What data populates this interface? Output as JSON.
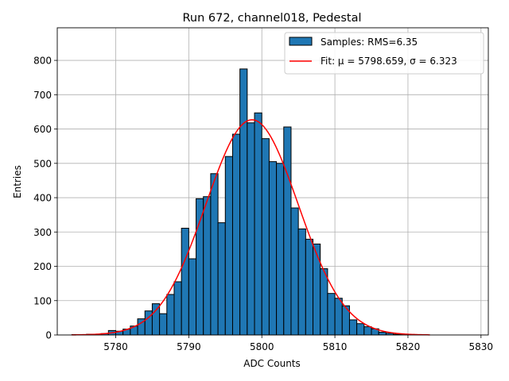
{
  "chart_data": {
    "type": "bar",
    "title": "Run 672, channel018, Pedestal",
    "xlabel": "ADC Counts",
    "ylabel": "Entries",
    "xlim": [
      5772,
      5831
    ],
    "ylim": [
      0,
      895
    ],
    "x_ticks": [
      5780,
      5790,
      5800,
      5810,
      5820,
      5830
    ],
    "y_ticks": [
      0,
      100,
      200,
      300,
      400,
      500,
      600,
      700,
      800
    ],
    "grid": true,
    "legend_position": "top-right",
    "bin_width": 1,
    "series": [
      {
        "name": "Samples: RMS=6.35",
        "kind": "histogram",
        "color": "#1f77b4",
        "edgecolor": "#000000",
        "bins": [
          {
            "x": 5774,
            "v": 1
          },
          {
            "x": 5775,
            "v": 1
          },
          {
            "x": 5776,
            "v": 2
          },
          {
            "x": 5777,
            "v": 2
          },
          {
            "x": 5778,
            "v": 4
          },
          {
            "x": 5779,
            "v": 13
          },
          {
            "x": 5780,
            "v": 11
          },
          {
            "x": 5781,
            "v": 17
          },
          {
            "x": 5782,
            "v": 26
          },
          {
            "x": 5783,
            "v": 47
          },
          {
            "x": 5784,
            "v": 70
          },
          {
            "x": 5785,
            "v": 91
          },
          {
            "x": 5786,
            "v": 62
          },
          {
            "x": 5787,
            "v": 118
          },
          {
            "x": 5788,
            "v": 155
          },
          {
            "x": 5789,
            "v": 311
          },
          {
            "x": 5790,
            "v": 222
          },
          {
            "x": 5791,
            "v": 397
          },
          {
            "x": 5792,
            "v": 403
          },
          {
            "x": 5793,
            "v": 470
          },
          {
            "x": 5794,
            "v": 327
          },
          {
            "x": 5795,
            "v": 520
          },
          {
            "x": 5796,
            "v": 585
          },
          {
            "x": 5797,
            "v": 775
          },
          {
            "x": 5798,
            "v": 618
          },
          {
            "x": 5799,
            "v": 647
          },
          {
            "x": 5800,
            "v": 572
          },
          {
            "x": 5801,
            "v": 505
          },
          {
            "x": 5802,
            "v": 500
          },
          {
            "x": 5803,
            "v": 606
          },
          {
            "x": 5804,
            "v": 370
          },
          {
            "x": 5805,
            "v": 309
          },
          {
            "x": 5806,
            "v": 279
          },
          {
            "x": 5807,
            "v": 265
          },
          {
            "x": 5808,
            "v": 193
          },
          {
            "x": 5809,
            "v": 121
          },
          {
            "x": 5810,
            "v": 107
          },
          {
            "x": 5811,
            "v": 85
          },
          {
            "x": 5812,
            "v": 44
          },
          {
            "x": 5813,
            "v": 33
          },
          {
            "x": 5814,
            "v": 24
          },
          {
            "x": 5815,
            "v": 18
          },
          {
            "x": 5816,
            "v": 8
          },
          {
            "x": 5817,
            "v": 5
          },
          {
            "x": 5818,
            "v": 2
          },
          {
            "x": 5819,
            "v": 1
          }
        ]
      },
      {
        "name": "Fit: μ = 5798.659, σ = 6.323",
        "kind": "gaussian_fit",
        "color": "#ff0000",
        "mu": 5798.659,
        "sigma": 6.323,
        "amplitude": 627,
        "x_range": [
          5774,
          5823
        ]
      }
    ]
  },
  "legend": {
    "samples_label": "Samples: RMS=6.35",
    "fit_label": "Fit: μ = 5798.659, σ = 6.323"
  },
  "colors": {
    "bar": "#1f77b4",
    "fit": "#ff0000",
    "grid": "#b0b0b0"
  }
}
